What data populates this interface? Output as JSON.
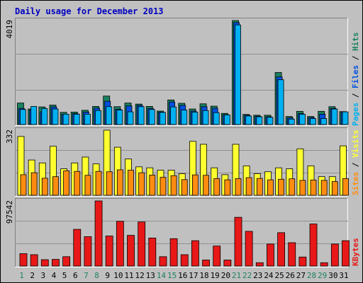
{
  "chart_data": {
    "type": "bar",
    "title": "Daily usage for December 2013",
    "categories": [
      "1",
      "2",
      "3",
      "4",
      "5",
      "6",
      "7",
      "8",
      "9",
      "10",
      "11",
      "12",
      "13",
      "14",
      "15",
      "16",
      "17",
      "18",
      "19",
      "20",
      "21",
      "22",
      "23",
      "24",
      "25",
      "26",
      "27",
      "28",
      "29",
      "30",
      "31"
    ],
    "weekend_days": [
      1,
      7,
      8,
      14,
      15,
      21,
      22,
      28,
      29
    ],
    "colors": {
      "background": "#c0c0c0",
      "border": "#000000",
      "title": "#0000c0",
      "weekday_label": "#000000",
      "weekend_label": "#208060",
      "hits": "#1a8060",
      "files": "#0050e0",
      "pages": "#00b0f0",
      "visits": "#ffff30",
      "sites": "#ff8c10",
      "kbytes": "#e81818"
    },
    "panels": [
      {
        "id": "hits-files-pages",
        "ymax_label": "4019",
        "ymax": 4019,
        "side_labels": [
          "Pages",
          " / ",
          "Files",
          " / ",
          "Hits"
        ],
        "series": [
          {
            "name": "Hits",
            "values": [
              830,
              600,
              680,
              750,
              470,
              480,
              550,
              700,
              1100,
              690,
              830,
              790,
              700,
              520,
              950,
              820,
              600,
              800,
              710,
              430,
              4019,
              390,
              360,
              360,
              2010,
              310,
              510,
              310,
              510,
              690,
              500
            ]
          },
          {
            "name": "Files",
            "values": [
              620,
              560,
              490,
              680,
              390,
              420,
              480,
              630,
              900,
              590,
              720,
              740,
              620,
              480,
              870,
              740,
              520,
              690,
              630,
              380,
              3940,
              360,
              320,
              300,
              1840,
              260,
              420,
              270,
              400,
              620,
              470
            ]
          },
          {
            "name": "Pages",
            "values": [
              580,
              700,
              620,
              600,
              400,
              400,
              400,
              540,
              690,
              560,
              490,
              690,
              580,
              470,
              680,
              560,
              480,
              540,
              460,
              370,
              3850,
              330,
              300,
              280,
              1730,
              210,
              400,
              230,
              230,
              600,
              490
            ]
          }
        ]
      },
      {
        "id": "visits-sites",
        "ymax_label": "332",
        "ymax": 332,
        "side_labels": [
          "Sites",
          " / ",
          "Visits"
        ],
        "series": [
          {
            "name": "Visits",
            "values": [
              300,
              180,
              165,
              250,
              135,
              165,
              195,
              160,
              332,
              245,
              185,
              145,
              140,
              128,
              128,
              110,
              275,
              260,
              140,
              105,
              260,
              150,
              110,
              120,
              140,
              135,
              237,
              150,
              95,
              95,
              252
            ]
          },
          {
            "name": "Sites",
            "values": [
              105,
              115,
              87,
              95,
              125,
              122,
              102,
              122,
              120,
              130,
              128,
              115,
              103,
              92,
              100,
              80,
              104,
              102,
              85,
              79,
              85,
              90,
              86,
              79,
              82,
              84,
              76,
              78,
              76,
              70,
              85
            ]
          }
        ]
      },
      {
        "id": "kbytes",
        "ymax_label": "97542",
        "ymax": 97542,
        "side_labels": [
          "KBytes"
        ],
        "series": [
          {
            "name": "KBytes",
            "values": [
              18500,
              17000,
              9500,
              10000,
              14000,
              55000,
              44000,
              97542,
              45000,
              67000,
              46000,
              66000,
              42000,
              14000,
              41000,
              17000,
              38000,
              9000,
              30000,
              9000,
              73000,
              52000,
              5000,
              33000,
              50000,
              35000,
              13500,
              63000,
              5000,
              33000,
              38000
            ]
          }
        ]
      }
    ]
  }
}
